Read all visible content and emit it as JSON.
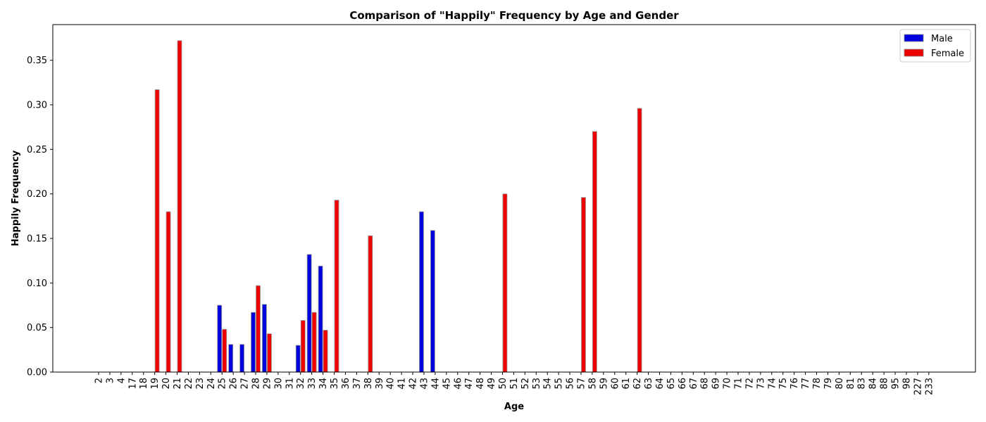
{
  "chart_data": {
    "type": "bar",
    "title": "Comparison of \"Happily\" Frequency by Age and Gender",
    "xlabel": "Age",
    "ylabel": "Happily Frequency",
    "ylim": [
      0,
      0.39
    ],
    "yticks": [
      0.0,
      0.05,
      0.1,
      0.15,
      0.2,
      0.25,
      0.3,
      0.35
    ],
    "ytick_labels": [
      "0.00",
      "0.05",
      "0.10",
      "0.15",
      "0.20",
      "0.25",
      "0.30",
      "0.35"
    ],
    "grid": false,
    "legend_position": "top-right",
    "categories": [
      "2",
      "3",
      "4",
      "17",
      "18",
      "19",
      "20",
      "21",
      "22",
      "23",
      "24",
      "25",
      "26",
      "27",
      "28",
      "29",
      "30",
      "31",
      "32",
      "33",
      "34",
      "35",
      "36",
      "37",
      "38",
      "39",
      "40",
      "41",
      "42",
      "43",
      "44",
      "45",
      "46",
      "47",
      "48",
      "49",
      "50",
      "51",
      "52",
      "53",
      "54",
      "55",
      "56",
      "57",
      "58",
      "59",
      "60",
      "61",
      "62",
      "63",
      "64",
      "65",
      "66",
      "67",
      "68",
      "69",
      "70",
      "71",
      "72",
      "73",
      "74",
      "75",
      "76",
      "77",
      "78",
      "79",
      "80",
      "81",
      "83",
      "84",
      "88",
      "95",
      "98",
      "227",
      "233"
    ],
    "series": [
      {
        "name": "Male",
        "color": "#0000dd",
        "values": [
          0,
          0,
          0,
          0,
          0,
          0,
          0,
          0,
          0,
          0,
          0,
          0.075,
          0.031,
          0.031,
          0.067,
          0.076,
          0,
          0,
          0.03,
          0.132,
          0.119,
          0,
          0,
          0,
          0,
          0,
          0,
          0,
          0,
          0.18,
          0.159,
          0,
          0,
          0,
          0,
          0,
          0,
          0,
          0,
          0,
          0,
          0,
          0,
          0,
          0,
          0,
          0,
          0,
          0,
          0,
          0,
          0,
          0,
          0,
          0,
          0,
          0,
          0,
          0,
          0,
          0,
          0,
          0,
          0,
          0,
          0,
          0,
          0,
          0,
          0,
          0,
          0,
          0,
          0,
          0
        ]
      },
      {
        "name": "Female",
        "color": "#ee0000",
        "values": [
          0,
          0,
          0,
          0,
          0,
          0.317,
          0.18,
          0.372,
          0,
          0,
          0,
          0.048,
          0,
          0,
          0.097,
          0.043,
          0,
          0,
          0.058,
          0.067,
          0.047,
          0.193,
          0,
          0,
          0.153,
          0,
          0,
          0,
          0,
          0,
          0,
          0,
          0,
          0,
          0,
          0,
          0.2,
          0,
          0,
          0,
          0,
          0,
          0,
          0.196,
          0.27,
          0,
          0,
          0,
          0.296,
          0,
          0,
          0,
          0,
          0,
          0,
          0,
          0,
          0,
          0,
          0,
          0,
          0,
          0,
          0,
          0,
          0,
          0,
          0,
          0,
          0,
          0,
          0,
          0,
          0,
          0
        ]
      }
    ]
  }
}
